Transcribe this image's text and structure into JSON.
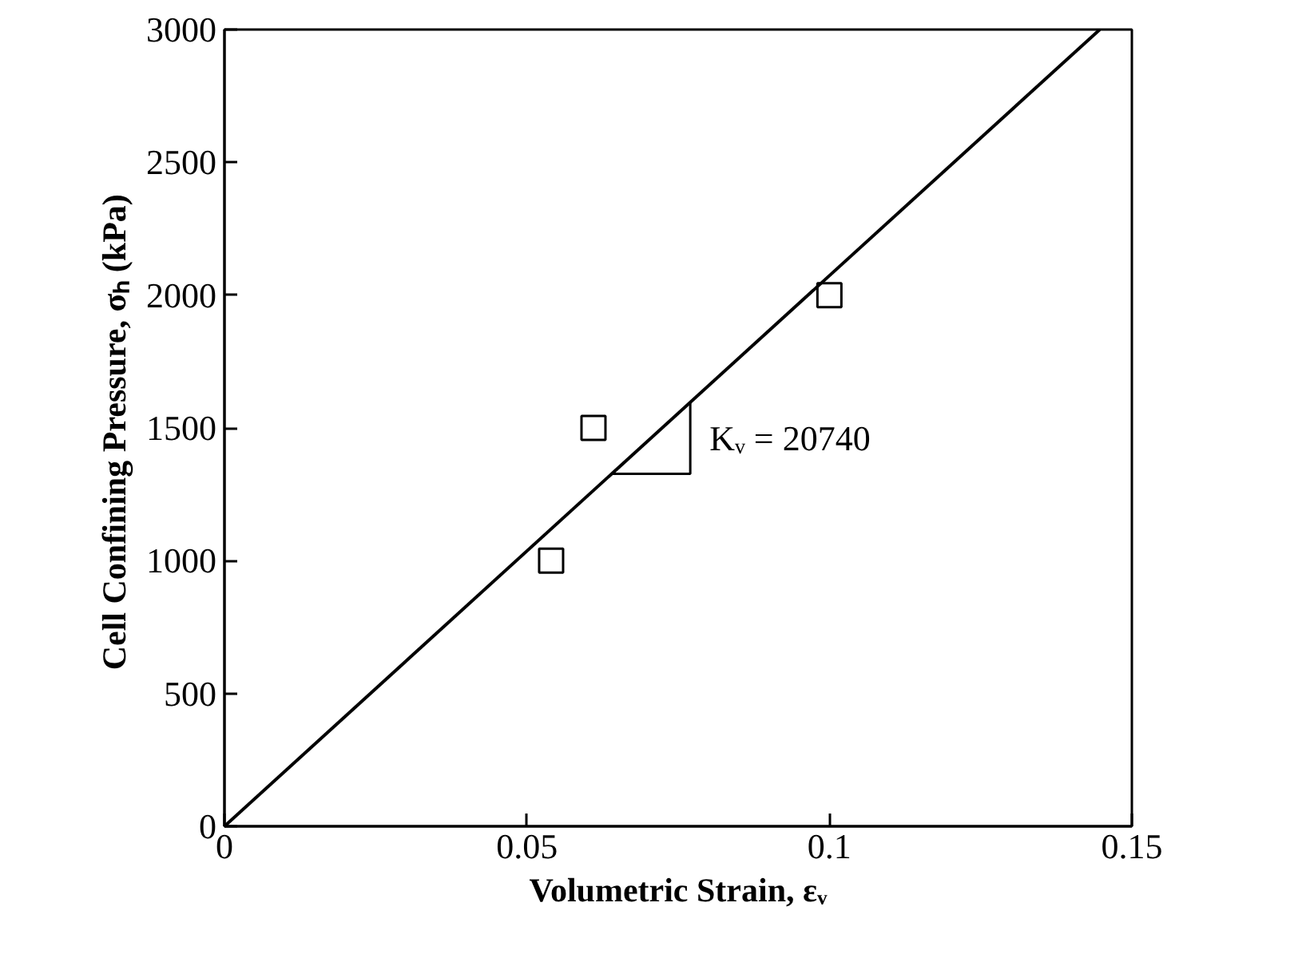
{
  "chart_data": {
    "type": "scatter",
    "xlabel": "Volumetric Strain, εᵥ",
    "ylabel": "Cell Confining Pressure, σₕ  (kPa)",
    "xlim": [
      0,
      0.15
    ],
    "ylim": [
      0,
      3000
    ],
    "xticks": [
      0,
      0.05,
      0.1,
      0.15
    ],
    "yticks": [
      0,
      500,
      1000,
      1500,
      2000,
      2500,
      3000
    ],
    "grid": false,
    "series": [
      {
        "color": "#000000",
        "marker": "square",
        "x": [
          0.054,
          0.061,
          0.1
        ],
        "values": [
          1000,
          1500,
          2000
        ]
      },
      {
        "type": "line",
        "color": "#000000",
        "x": [
          0,
          0.1447
        ],
        "values": [
          0,
          3000
        ]
      }
    ],
    "annotations": [
      {
        "text": "Kᵥ = 20740",
        "x": 0.077,
        "y": 1597
      }
    ]
  }
}
